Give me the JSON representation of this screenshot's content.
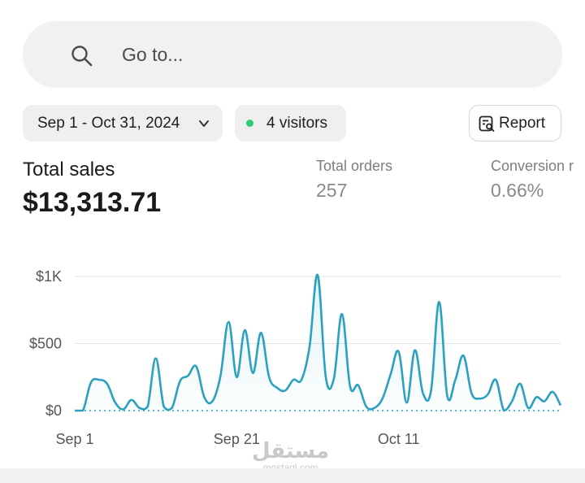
{
  "search": {
    "placeholder": "Go to..."
  },
  "filters": {
    "date_range": "Sep 1 - Oct 31, 2024",
    "visitors": "4 visitors",
    "report_label": "Report"
  },
  "metrics": {
    "total_sales_label": "Total sales",
    "total_sales_value": "$13,313.71",
    "total_orders_label": "Total orders",
    "total_orders_value": "257",
    "conversion_label": "Conversion r",
    "conversion_value": "0.66%"
  },
  "watermark": {
    "arabic": "مستقل",
    "latin": "mostaql.com"
  },
  "colors": {
    "line": "#2aa1c0",
    "visitors_dot": "#2ecc71",
    "pill_bg": "#efefef"
  },
  "chart_data": {
    "type": "area",
    "title": "",
    "xlabel": "",
    "ylabel": "",
    "y_ticks": [
      "$1K",
      "$500",
      "$0"
    ],
    "y_tick_values": [
      1000,
      500,
      0
    ],
    "x_ticks": [
      "Sep 1",
      "Sep 21",
      "Oct 11"
    ],
    "ylim": [
      0,
      1000
    ],
    "grid": true,
    "baseline_dotted": true,
    "x": [
      "Sep 1",
      "Sep 2",
      "Sep 3",
      "Sep 4",
      "Sep 5",
      "Sep 6",
      "Sep 7",
      "Sep 8",
      "Sep 9",
      "Sep 10",
      "Sep 11",
      "Sep 12",
      "Sep 13",
      "Sep 14",
      "Sep 15",
      "Sep 16",
      "Sep 17",
      "Sep 18",
      "Sep 19",
      "Sep 20",
      "Sep 21",
      "Sep 22",
      "Sep 23",
      "Sep 24",
      "Sep 25",
      "Sep 26",
      "Sep 27",
      "Sep 28",
      "Sep 29",
      "Sep 30",
      "Oct 1",
      "Oct 2",
      "Oct 3",
      "Oct 4",
      "Oct 5",
      "Oct 6",
      "Oct 7",
      "Oct 8",
      "Oct 9",
      "Oct 10",
      "Oct 11",
      "Oct 12",
      "Oct 13",
      "Oct 14",
      "Oct 15",
      "Oct 16",
      "Oct 17",
      "Oct 18",
      "Oct 19",
      "Oct 20",
      "Oct 21",
      "Oct 22",
      "Oct 23",
      "Oct 24",
      "Oct 25",
      "Oct 26",
      "Oct 27",
      "Oct 28",
      "Oct 29",
      "Oct 30",
      "Oct 31"
    ],
    "series": [
      {
        "values": [
          0,
          0,
          210,
          230,
          200,
          60,
          10,
          80,
          20,
          30,
          390,
          30,
          20,
          220,
          260,
          330,
          100,
          70,
          260,
          660,
          250,
          600,
          280,
          580,
          250,
          170,
          150,
          230,
          230,
          480,
          1010,
          250,
          240,
          720,
          180,
          190,
          30,
          20,
          90,
          270,
          440,
          60,
          450,
          130,
          150,
          810,
          110,
          230,
          410,
          130,
          90,
          120,
          230,
          0,
          70,
          200,
          20,
          100,
          70,
          140,
          40
        ]
      }
    ]
  }
}
